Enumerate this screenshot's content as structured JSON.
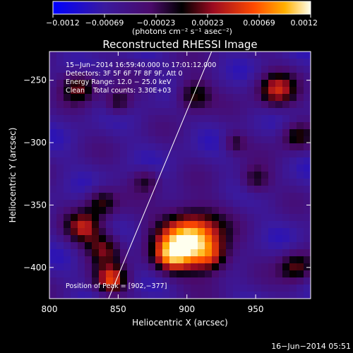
{
  "chart_data": {
    "type": "heatmap",
    "title": "Reconstructed RHESSI Image",
    "xlabel": "Heliocentric X (arcsec)",
    "ylabel": "Heliocentric Y (arcsec)",
    "xlim": [
      800,
      990
    ],
    "ylim": [
      -425,
      -227
    ],
    "xticks": [
      "800",
      "850",
      "900",
      "950"
    ],
    "xtick_values": [
      800,
      850,
      900,
      950
    ],
    "yticks": [
      "−250",
      "−300",
      "−350",
      "−400"
    ],
    "ytick_values": [
      -250,
      -300,
      -350,
      -400
    ],
    "colorbar": {
      "ticks": [
        "−0.0012",
        "−0.00069",
        "−0.00023",
        "0.00023",
        "0.00069",
        "0.0012"
      ],
      "units": "(photons cm⁻² s⁻¹ asec⁻²)",
      "range": [
        -0.0012,
        0.0012
      ]
    },
    "annotations": [
      "15−Jun−2014 16:59:40.000 to 17:01:12.000",
      "Detectors: 3F 5F 6F 7F 8F 9F, Att 0",
      "Energy Range: 12.0 − 25.0 keV",
      "Clean    Total counts: 3.30E+03"
    ],
    "peak_label": "Position of Peak = [902,−377]",
    "peak": [
      902,
      -377
    ],
    "limb_line": [
      [
        843,
        -425
      ],
      [
        918,
        -227
      ]
    ],
    "sources": [
      {
        "x": 902,
        "y": -377,
        "r": 16,
        "amp": 1.0
      },
      {
        "x": 888,
        "y": -392,
        "r": 9,
        "amp": 0.45
      },
      {
        "x": 918,
        "y": -392,
        "r": 9,
        "amp": 0.4
      },
      {
        "x": 845,
        "y": -410,
        "r": 8,
        "amp": 0.6
      },
      {
        "x": 840,
        "y": -385,
        "r": 9,
        "amp": 0.45
      },
      {
        "x": 825,
        "y": -368,
        "r": 9,
        "amp": 0.5
      },
      {
        "x": 838,
        "y": -348,
        "r": 8,
        "amp": 0.4
      },
      {
        "x": 822,
        "y": -255,
        "r": 9,
        "amp": 0.45
      },
      {
        "x": 850,
        "y": -268,
        "r": 7,
        "amp": 0.35
      },
      {
        "x": 905,
        "y": -262,
        "r": 9,
        "amp": 0.45
      },
      {
        "x": 965,
        "y": -258,
        "r": 10,
        "amp": 0.55
      },
      {
        "x": 980,
        "y": -295,
        "r": 8,
        "amp": 0.4
      },
      {
        "x": 950,
        "y": -330,
        "r": 8,
        "amp": 0.35
      },
      {
        "x": 980,
        "y": -400,
        "r": 9,
        "amp": 0.45
      },
      {
        "x": 935,
        "y": -300,
        "r": 6,
        "amp": 0.3
      },
      {
        "x": 870,
        "y": -330,
        "r": 7,
        "amp": 0.3
      }
    ]
  },
  "footer": {
    "date": "16−Jun−2014 05:51"
  }
}
